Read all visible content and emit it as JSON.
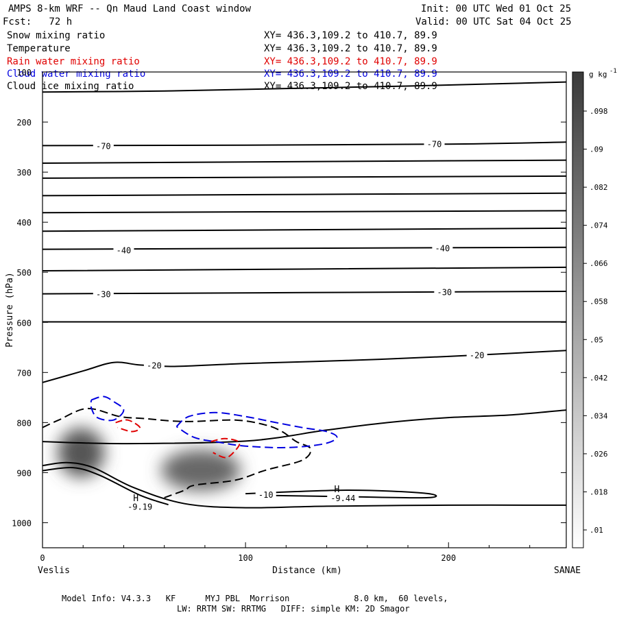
{
  "header": {
    "title": "AMPS 8-km WRF -- Qn Maud Land Coast window",
    "init": "Init: 00 UTC Wed 01 Oct 25",
    "forecast": "Fcst:   72 h",
    "valid": "Valid: 00 UTC Sat 04 Oct 25"
  },
  "fields": [
    {
      "name": "Snow mixing ratio",
      "xy": "XY= 436.3,109.2 to 410.7, 89.9",
      "color": "#000000"
    },
    {
      "name": "Temperature",
      "xy": "XY= 436.3,109.2 to 410.7, 89.9",
      "color": "#000000"
    },
    {
      "name": "Rain water mixing ratio",
      "xy": "XY= 436.3,109.2 to 410.7, 89.9",
      "color": "#e00000"
    },
    {
      "name": "Cloud water mixing ratio",
      "xy": "XY= 436.3,109.2 to 410.7, 89.9",
      "color": "#0000e0"
    },
    {
      "name": "Cloud ice mixing ratio",
      "xy": "XY= 436.3,109.2 to 410.7, 89.9",
      "color": "#000000"
    }
  ],
  "chart_data": {
    "type": "contour",
    "xlabel": "Distance (km)",
    "ylabel": "Pressure (hPa)",
    "xlim": [
      0,
      258
    ],
    "ylim": [
      1050,
      100
    ],
    "xticks": [
      0,
      100,
      200
    ],
    "yticks": [
      100,
      200,
      300,
      400,
      500,
      600,
      700,
      800,
      900,
      1000
    ],
    "left_endpoint": "Veslis",
    "right_endpoint": "SANAE",
    "colorbar": {
      "unit": "g kg",
      "unit_exp": "-1",
      "ticks": [
        ".098",
        ".09",
        ".082",
        ".074",
        ".066",
        ".058",
        ".05",
        ".042",
        ".034",
        ".026",
        ".018",
        ".01"
      ]
    },
    "temperature_contours": [
      {
        "points": [
          [
            0,
            140
          ],
          [
            60,
            138
          ],
          [
            120,
            133
          ],
          [
            180,
            128
          ],
          [
            258,
            120
          ]
        ]
      },
      {
        "level": -70,
        "points": [
          [
            0,
            247
          ],
          [
            100,
            246
          ],
          [
            200,
            244
          ],
          [
            258,
            240
          ]
        ]
      },
      {
        "points": [
          [
            0,
            282
          ],
          [
            258,
            276
          ]
        ]
      },
      {
        "points": [
          [
            0,
            312
          ],
          [
            258,
            308
          ]
        ]
      },
      {
        "points": [
          [
            0,
            347
          ],
          [
            258,
            342
          ]
        ]
      },
      {
        "points": [
          [
            0,
            381
          ],
          [
            258,
            377
          ]
        ]
      },
      {
        "points": [
          [
            0,
            418
          ],
          [
            258,
            412
          ]
        ]
      },
      {
        "level": -40,
        "points": [
          [
            0,
            454
          ],
          [
            258,
            450
          ]
        ]
      },
      {
        "points": [
          [
            0,
            497
          ],
          [
            258,
            490
          ]
        ]
      },
      {
        "level": -30,
        "points": [
          [
            0,
            543
          ],
          [
            258,
            538
          ]
        ]
      },
      {
        "points": [
          [
            0,
            599
          ],
          [
            258,
            599
          ]
        ]
      },
      {
        "level": -20,
        "points": [
          [
            0,
            720
          ],
          [
            20,
            697
          ],
          [
            35,
            680
          ],
          [
            48,
            685
          ],
          [
            65,
            688
          ],
          [
            100,
            682
          ],
          [
            150,
            676
          ],
          [
            200,
            668
          ],
          [
            258,
            656
          ]
        ]
      },
      {
        "points": [
          [
            0,
            838
          ],
          [
            40,
            842
          ],
          [
            100,
            837
          ],
          [
            140,
            815
          ],
          [
            170,
            800
          ],
          [
            200,
            790
          ],
          [
            230,
            785
          ],
          [
            258,
            775
          ]
        ]
      },
      {
        "points": [
          [
            0,
            886
          ],
          [
            12,
            880
          ],
          [
            25,
            890
          ],
          [
            45,
            930
          ],
          [
            70,
            962
          ],
          [
            100,
            970
          ],
          [
            140,
            967
          ],
          [
            200,
            965
          ],
          [
            258,
            965
          ]
        ]
      },
      {
        "points": [
          [
            0,
            896
          ],
          [
            15,
            890
          ],
          [
            28,
            905
          ],
          [
            48,
            945
          ],
          [
            62,
            964
          ]
        ]
      },
      {
        "level": -10,
        "points": [
          [
            100,
            942
          ],
          [
            150,
            935
          ],
          [
            188,
            941
          ],
          [
            190,
            950
          ],
          [
            150,
            948
          ],
          [
            105,
            945
          ]
        ]
      }
    ],
    "temperature_labels": [
      {
        "text": "-70",
        "x": 30,
        "p": 247
      },
      {
        "text": "-70",
        "x": 193,
        "p": 243
      },
      {
        "text": "-40",
        "x": 40,
        "p": 455
      },
      {
        "text": "-40",
        "x": 197,
        "p": 451
      },
      {
        "text": "-30",
        "x": 30,
        "p": 543
      },
      {
        "text": "-30",
        "x": 198,
        "p": 539
      },
      {
        "text": "-20",
        "x": 55,
        "p": 685
      },
      {
        "text": "-20",
        "x": 214,
        "p": 665
      },
      {
        "text": "-10",
        "x": 110,
        "p": 943
      },
      {
        "text": "-9.44",
        "x": 148,
        "p": 950
      },
      {
        "text": "-9.19",
        "x": 48,
        "p": 967
      }
    ],
    "extrema_labels": [
      {
        "text": "H",
        "x": 46,
        "p": 950
      },
      {
        "text": "H",
        "x": 145,
        "p": 932
      }
    ],
    "snow_maxima": [
      {
        "x": 19,
        "p": 860,
        "max": 0.09
      },
      {
        "x": 78,
        "p": 895,
        "max": 0.08
      }
    ],
    "cloud_ice_contours": [
      {
        "points": [
          [
            0,
            810
          ],
          [
            8,
            795
          ],
          [
            22,
            772
          ],
          [
            38,
            788
          ],
          [
            50,
            792
          ],
          [
            70,
            798
          ],
          [
            95,
            795
          ],
          [
            110,
            805
          ],
          [
            118,
            818
          ],
          [
            125,
            838
          ],
          [
            132,
            852
          ],
          [
            128,
            875
          ],
          [
            110,
            895
          ],
          [
            95,
            915
          ],
          [
            75,
            925
          ],
          [
            70,
            935
          ],
          [
            60,
            950
          ]
        ]
      }
    ],
    "cloud_water_contours": [
      {
        "points": [
          [
            24,
            755
          ],
          [
            30,
            748
          ],
          [
            35,
            758
          ],
          [
            40,
            775
          ],
          [
            35,
            795
          ],
          [
            27,
            790
          ],
          [
            24,
            770
          ],
          [
            24,
            755
          ]
        ]
      },
      {
        "points": [
          [
            66,
            808
          ],
          [
            72,
            788
          ],
          [
            85,
            780
          ],
          [
            100,
            788
          ],
          [
            115,
            800
          ],
          [
            128,
            810
          ],
          [
            140,
            818
          ],
          [
            145,
            830
          ],
          [
            138,
            843
          ],
          [
            120,
            850
          ],
          [
            100,
            847
          ],
          [
            88,
            840
          ],
          [
            75,
            830
          ],
          [
            66,
            808
          ]
        ]
      }
    ],
    "rain_water_contours": [
      {
        "points": [
          [
            36,
            800
          ],
          [
            42,
            795
          ],
          [
            48,
            810
          ],
          [
            44,
            818
          ],
          [
            37,
            810
          ]
        ]
      },
      {
        "points": [
          [
            83,
            838
          ],
          [
            90,
            832
          ],
          [
            97,
            840
          ],
          [
            94,
            860
          ],
          [
            90,
            870
          ],
          [
            84,
            860
          ]
        ]
      }
    ]
  },
  "footer": {
    "line1": "Model Info: V4.3.3   KF      MYJ PBL  Morrison             8.0 km,  60 levels,",
    "line2": "LW: RRTM SW: RRTMG   DIFF: simple KM: 2D Smagor"
  }
}
